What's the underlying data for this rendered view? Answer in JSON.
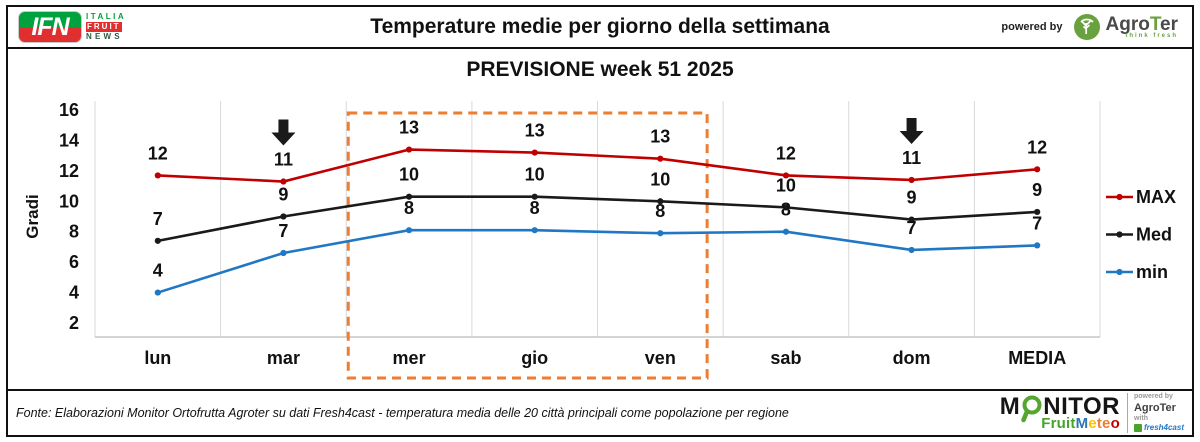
{
  "header": {
    "logo": {
      "ifn": "IFN",
      "italia": "ITALIA",
      "fruit": "FRUIT",
      "news": "NEWS"
    },
    "title": "Temperature medie per giorno della settimana",
    "powered_by": "powered by",
    "agroter": {
      "prefix": "Agro",
      "t": "T",
      "suffix": "er",
      "tagline": "think fresh"
    }
  },
  "chart_data": {
    "type": "line",
    "title": "PREVISIONE week 51 2025",
    "ylabel": "Gradi",
    "categories": [
      "lun",
      "mar",
      "mer",
      "gio",
      "ven",
      "sab",
      "dom",
      "MEDIA"
    ],
    "ylim": [
      2,
      16
    ],
    "yticks": [
      2,
      4,
      6,
      8,
      10,
      12,
      14,
      16
    ],
    "grid": "vertical-only",
    "legend_position": "right",
    "series": [
      {
        "name": "MAX",
        "color": "#c00000",
        "values": [
          11.7,
          11.3,
          13.4,
          13.2,
          12.8,
          11.7,
          11.4,
          12.1
        ],
        "labels": [
          12,
          11,
          13,
          13,
          13,
          12,
          11,
          12
        ]
      },
      {
        "name": "Med",
        "color": "#1a1a1a",
        "values": [
          7.4,
          9.0,
          10.3,
          10.3,
          10.0,
          9.6,
          8.8,
          9.3
        ],
        "labels": [
          7,
          9,
          10,
          10,
          10,
          10,
          9,
          9
        ]
      },
      {
        "name": "min",
        "color": "#2077c4",
        "values": [
          4.0,
          6.6,
          8.1,
          8.1,
          7.9,
          8.0,
          6.8,
          7.1
        ],
        "labels": [
          4,
          7,
          8,
          8,
          8,
          8,
          7,
          7
        ]
      }
    ],
    "annotations": {
      "down_arrow_categories": [
        "mar",
        "dom"
      ],
      "down_arrow_color": "#1a1a1a",
      "highlight_box_categories": [
        "mer",
        "gio",
        "ven"
      ],
      "highlight_color": "#ed7d31"
    }
  },
  "footer": {
    "source": "Fonte: Elaborazioni Monitor Ortofrutta Agroter su dati Fresh4cast - temperatura media delle 20 città principali come popolazione per regione",
    "monitor_logo": {
      "m": "M",
      "nitor": "NITOR",
      "fruit": "Fruit",
      "meteo_letters": [
        {
          "ch": "M",
          "color": "#2e75b6"
        },
        {
          "ch": "e",
          "color": "#ffc000"
        },
        {
          "ch": "t",
          "color": "#ed7d31"
        },
        {
          "ch": "e",
          "color": "#ed7d31"
        },
        {
          "ch": "o",
          "color": "#c00000"
        }
      ],
      "powered_by": "powered by",
      "agroter": "AgroTer",
      "with": "with",
      "fresh4cast": "fresh4cast"
    }
  }
}
